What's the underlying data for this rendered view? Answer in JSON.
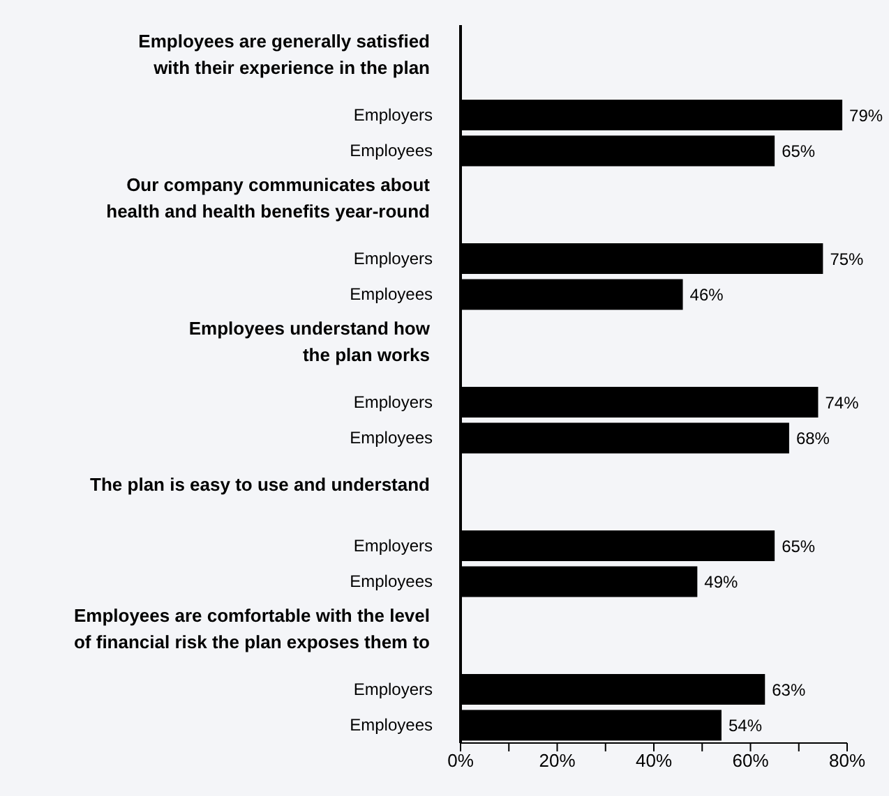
{
  "chart_data": {
    "type": "bar",
    "orientation": "horizontal",
    "categories": [
      "Employees are generally satisfied\nwith their experience in the plan",
      "Our company communicates about\nhealth and health benefits year-round",
      "Employees understand how\nthe plan works",
      "The plan is easy to use and understand",
      "Employees are comfortable with the level\nof financial risk the plan exposes them to"
    ],
    "series": [
      {
        "name": "Employers",
        "color": "#000000",
        "values": [
          79,
          75,
          74,
          65,
          63
        ],
        "value_labels": [
          "79%",
          "75%",
          "74%",
          "65%",
          "63%"
        ]
      },
      {
        "name": "Employees",
        "color": "#000000",
        "values": [
          65,
          46,
          68,
          49,
          54
        ],
        "value_labels": [
          "65%",
          "46%",
          "68%",
          "49%",
          "54%"
        ]
      }
    ],
    "xlim": [
      0,
      80
    ],
    "xticks": [
      {
        "value": 0,
        "label": "0%"
      },
      {
        "value": 10,
        "label": null
      },
      {
        "value": 20,
        "label": "20%"
      },
      {
        "value": 30,
        "label": null
      },
      {
        "value": 40,
        "label": "40%"
      },
      {
        "value": 50,
        "label": null
      },
      {
        "value": 60,
        "label": "60%"
      },
      {
        "value": 70,
        "label": null
      },
      {
        "value": 80,
        "label": "80%"
      }
    ],
    "tick_labels": true
  }
}
